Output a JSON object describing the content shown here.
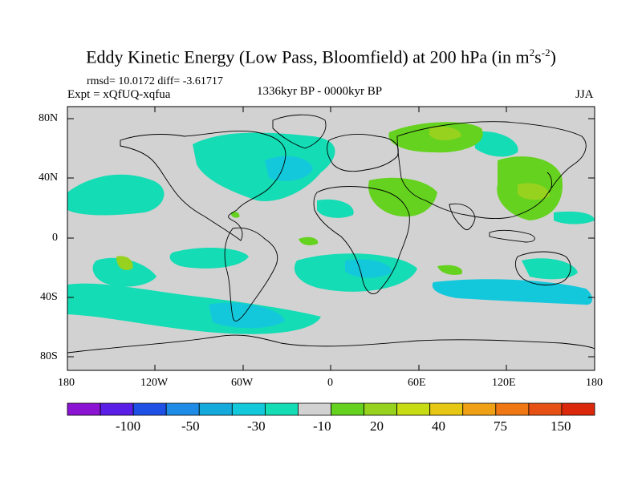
{
  "title": {
    "main": "Eddy Kinetic Energy (Low Pass, Bloomfield) at 200 hPa (in m",
    "sup1": "2",
    "mid": "s",
    "sup2": "-2",
    "end": ")"
  },
  "stats_line": "rmsd= 10.0172 diff= -3.61717",
  "experiment": "Expt = xQfUQ-xqfua",
  "period": "1336kyr BP - 0000kyr BP",
  "season": "JJA",
  "map": {
    "lat_ticks": [
      "80N",
      "40N",
      "0",
      "40S",
      "80S"
    ],
    "lon_ticks": [
      "180",
      "120W",
      "60W",
      "0",
      "60E",
      "120E",
      "180"
    ]
  },
  "colorbar": {
    "colors": [
      "#8a14d2",
      "#5a1ee6",
      "#1e50e6",
      "#1e8ce6",
      "#14aadc",
      "#14c8dc",
      "#14dcb4",
      "#d2d2d2",
      "#64d21e",
      "#96d21e",
      "#c8dc14",
      "#e6c814",
      "#f0a014",
      "#f07814",
      "#e65014",
      "#dc280a"
    ],
    "labels": [
      "-100",
      "-50",
      "-30",
      "-10",
      "20",
      "40",
      "75",
      "150"
    ]
  },
  "colors": {
    "land_neutral": "#d2d2d2",
    "negative_light": "#14dcb4",
    "negative_mid": "#14c8dc",
    "positive_light": "#64d21e",
    "positive_mid": "#96d21e",
    "positive_high": "#c8dc14"
  }
}
